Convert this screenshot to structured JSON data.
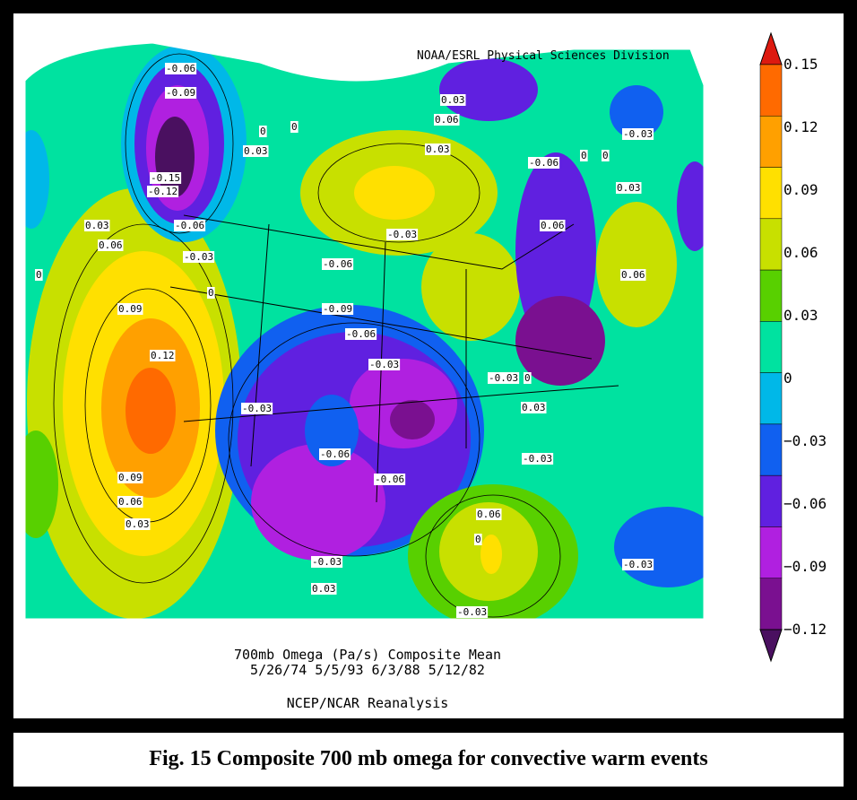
{
  "credit": "NOAA/ESRL Physical Sciences Division",
  "title": {
    "line1": "700mb Omega (Pa/s) Composite Mean",
    "line2": "5/26/74 5/5/93 6/3/88 5/12/82",
    "source": "NCEP/NCAR Reanalysis"
  },
  "caption": "Fig. 15 Composite 700 mb omega for convective warm events",
  "colorbar": {
    "labels": [
      "0.15",
      "0.12",
      "0.09",
      "0.06",
      "0.03",
      "0",
      "−0.03",
      "−0.06",
      "−0.09",
      "−0.12"
    ],
    "colors": [
      "#dd1a10",
      "#ff6a00",
      "#ffa000",
      "#ffe000",
      "#c8e000",
      "#58d000",
      "#00e2a0",
      "#00b8e8",
      "#1060f0",
      "#6020e0",
      "#b020e0",
      "#7a1090",
      "#4a1060"
    ]
  },
  "contour_labels": [
    "-0.06",
    "-0.09",
    "-0.15",
    "-0.12",
    "-0.06",
    "-0.03",
    "0.03",
    "0.06",
    "0",
    "0.09",
    "0.12",
    "0.09",
    "0.06",
    "0.03",
    "0",
    "-0.03",
    "0",
    "0.03",
    "0.03",
    "0.06",
    "0.03",
    "0",
    "-0.03",
    "-0.06",
    "-0.09",
    "-0.06",
    "-0.03",
    "-0.06",
    "-0.06",
    "-0.03",
    "0.03",
    "0",
    "-0.03",
    "0",
    "0.03",
    "-0.03",
    "-0.06",
    "0.06",
    "0",
    "0",
    "-0.03",
    "0.03",
    "0.06",
    "-0.03",
    "0.06",
    "-0.03"
  ]
}
